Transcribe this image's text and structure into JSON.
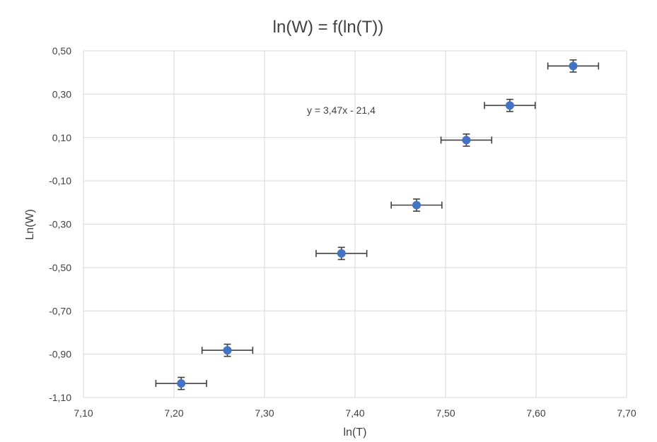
{
  "chart_data": {
    "type": "scatter",
    "title": "ln(W) = f(ln(T))",
    "xlabel": "ln(T)",
    "ylabel": "Ln(W)",
    "xlim": [
      7.1,
      7.7
    ],
    "ylim": [
      -1.1,
      0.5
    ],
    "x_ticks": [
      7.1,
      7.2,
      7.3,
      7.4,
      7.5,
      7.6,
      7.7
    ],
    "x_tick_labels": [
      "7,10",
      "7,20",
      "7,30",
      "7,40",
      "7,50",
      "7,60",
      "7,70"
    ],
    "y_ticks": [
      -1.1,
      -0.9,
      -0.7,
      -0.5,
      -0.3,
      -0.1,
      0.1,
      0.3,
      0.5
    ],
    "y_tick_labels": [
      "-1,10",
      "-0,90",
      "-0,70",
      "-0,50",
      "-0,30",
      "-0,10",
      "0,10",
      "0,30",
      "0,50"
    ],
    "grid": true,
    "series": [
      {
        "x": [
          7.208,
          7.259,
          7.385,
          7.468,
          7.523,
          7.571,
          7.641
        ],
        "y": [
          -1.035,
          -0.882,
          -0.435,
          -0.212,
          0.088,
          0.248,
          0.43
        ],
        "x_error": 0.028,
        "y_error": 0.028
      }
    ],
    "trendline": {
      "label": "y = 3,47x - 21,4",
      "x_range": [
        7.208,
        7.641
      ],
      "slope": 3.47,
      "intercept": -21.4
    },
    "colors": {
      "marker": "#4472C4",
      "trendline": "#4472C4",
      "error_bar": "#404040",
      "grid": "#D9D9D9"
    }
  }
}
